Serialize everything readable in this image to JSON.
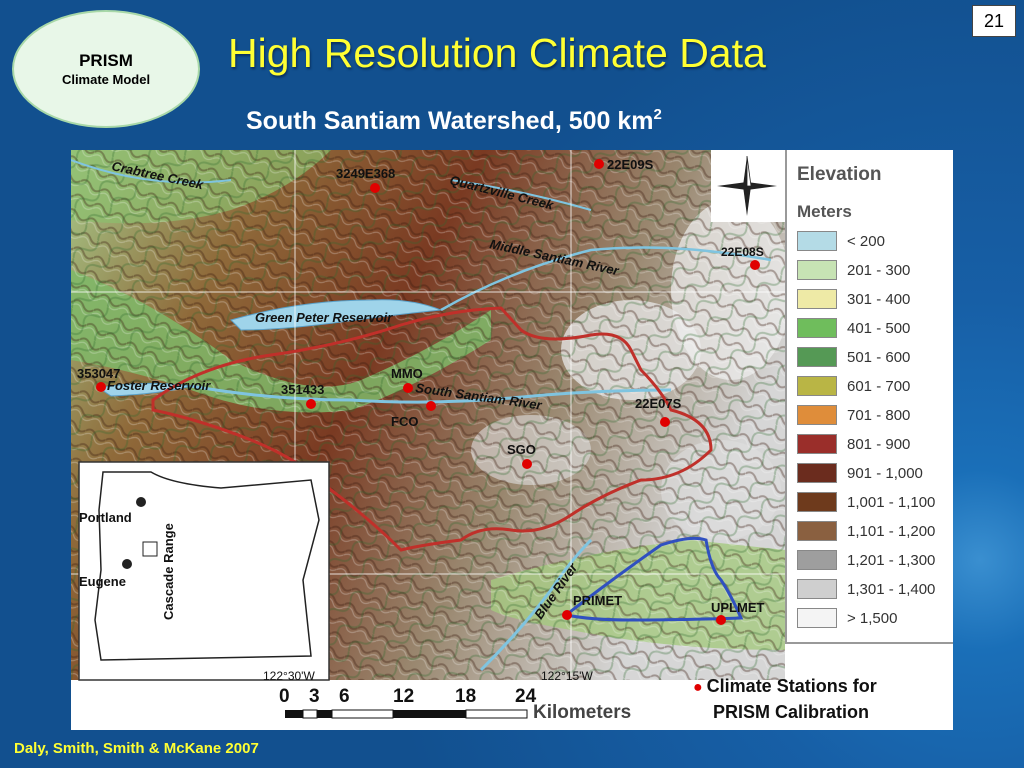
{
  "slide_number": "21",
  "badge": {
    "line1": "PRISM",
    "line2": "Climate Model"
  },
  "title": "High Resolution Climate Data",
  "subtitle": {
    "text": "South Santiam Watershed, 500 km",
    "superscript": "2"
  },
  "citation": "Daly, Smith, Smith & McKane 2007",
  "legend": {
    "title": "Elevation",
    "units": "Meters",
    "items": [
      {
        "label": "< 200",
        "color": "#b4dbe6"
      },
      {
        "label": "201 - 300",
        "color": "#c7e3b4"
      },
      {
        "label": "301 - 400",
        "color": "#eeeaa6"
      },
      {
        "label": "401 - 500",
        "color": "#6fbd5c"
      },
      {
        "label": "501 - 600",
        "color": "#559955"
      },
      {
        "label": "601 - 700",
        "color": "#b9b545"
      },
      {
        "label": "701 - 800",
        "color": "#df8d3a"
      },
      {
        "label": "801 - 900",
        "color": "#9a2e2a"
      },
      {
        "label": "901 - 1,000",
        "color": "#6b2c1e"
      },
      {
        "label": "1,001 - 1,100",
        "color": "#6e3a1c"
      },
      {
        "label": "1,101 - 1,200",
        "color": "#8a6040"
      },
      {
        "label": "1,201 - 1,300",
        "color": "#9e9e9e"
      },
      {
        "label": "1,301 - 1,400",
        "color": "#cfcfcf"
      },
      {
        "label": "> 1,500",
        "color": "#f4f4f4"
      }
    ]
  },
  "stations": [
    "3249E368",
    "22E09S",
    "22E08S",
    "353047",
    "351433",
    "MMO",
    "FCO",
    "SGO",
    "22E07S",
    "PRIMET",
    "UPLMET"
  ],
  "rivers": [
    "Crabtree Creek",
    "Quartzville Creek",
    "Middle Santiam River",
    "Green Peter Reservoir",
    "Foster Reservoir",
    "South Santiam River",
    "Blue River"
  ],
  "inset": {
    "cities": [
      "Portland",
      "Eugene"
    ],
    "range": "Cascade Range"
  },
  "grid_labels": [
    "122°30'W",
    "122°15'W"
  ],
  "scale": {
    "ticks": [
      "0",
      "3",
      "6",
      "12",
      "18",
      "24"
    ],
    "units": "Kilometers"
  },
  "stations_note": {
    "line1": "Climate Stations for",
    "line2": "PRISM Calibration"
  },
  "colors": {
    "station": "#e00000",
    "boundary": "#c0302a",
    "sub_boundary": "#3050c0",
    "title": "#ffff33"
  }
}
